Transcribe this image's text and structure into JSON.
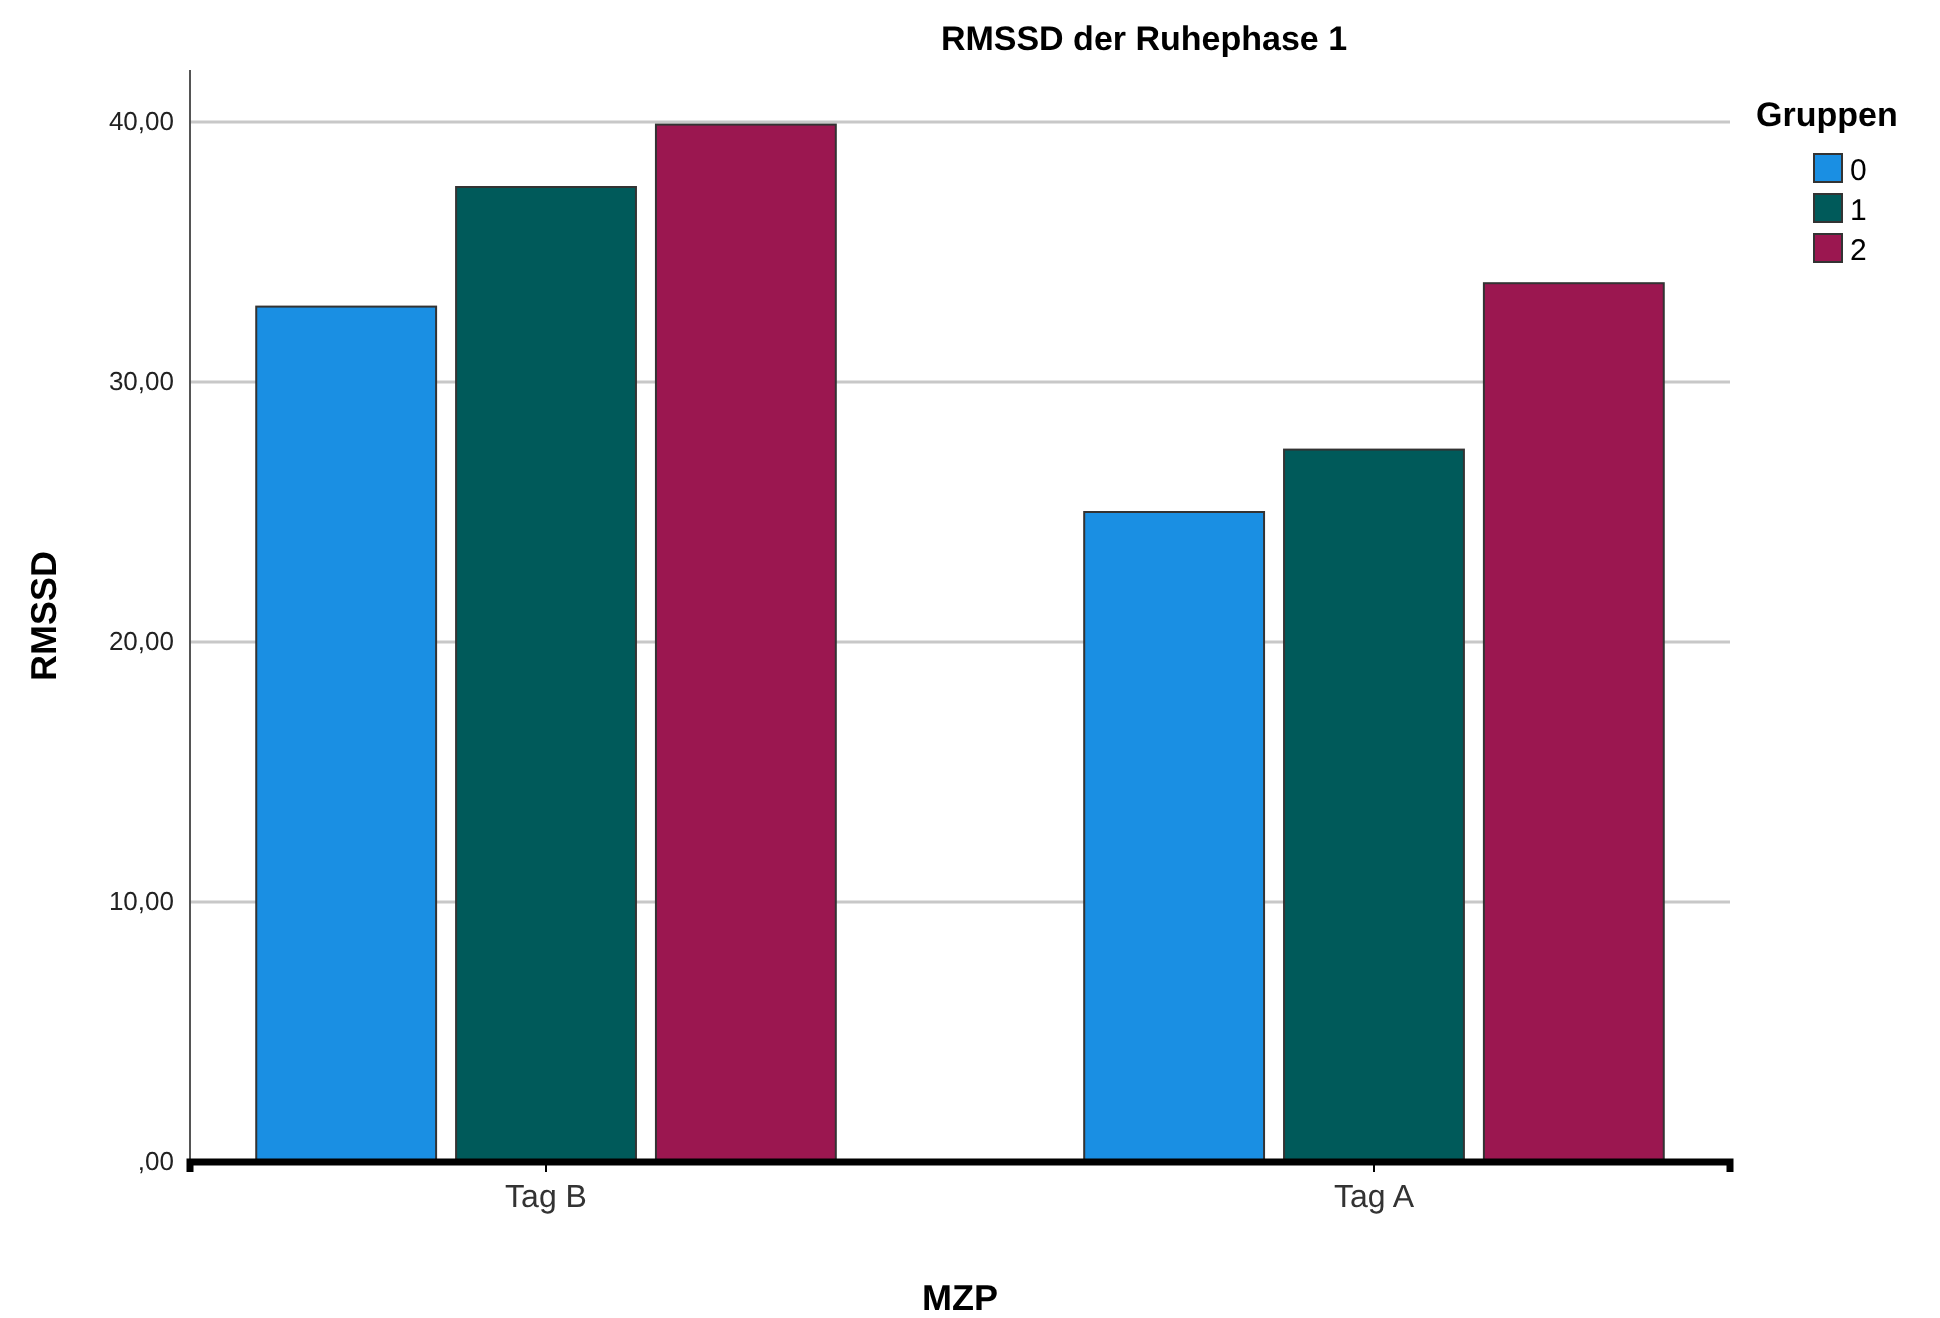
{
  "chart_data": {
    "type": "bar",
    "title": "RMSSD der Ruhephase 1",
    "xlabel": "MZP",
    "ylabel": "RMSSD",
    "legend_title": "Gruppen",
    "categories": [
      "Tag B",
      "Tag A"
    ],
    "series": [
      {
        "name": "0",
        "color": "#1a8fe3",
        "values": [
          32.9,
          25.0
        ]
      },
      {
        "name": "1",
        "color": "#005a5a",
        "values": [
          37.5,
          27.4
        ]
      },
      {
        "name": "2",
        "color": "#9b1750",
        "values": [
          39.9,
          33.8
        ]
      }
    ],
    "ylim": [
      0,
      42
    ],
    "yticks": [
      {
        "value": 0,
        "label": ",00"
      },
      {
        "value": 10,
        "label": "10,00"
      },
      {
        "value": 20,
        "label": "20,00"
      },
      {
        "value": 30,
        "label": "30,00"
      },
      {
        "value": 40,
        "label": "40,00"
      }
    ],
    "grid": "y",
    "legend": "top right"
  }
}
